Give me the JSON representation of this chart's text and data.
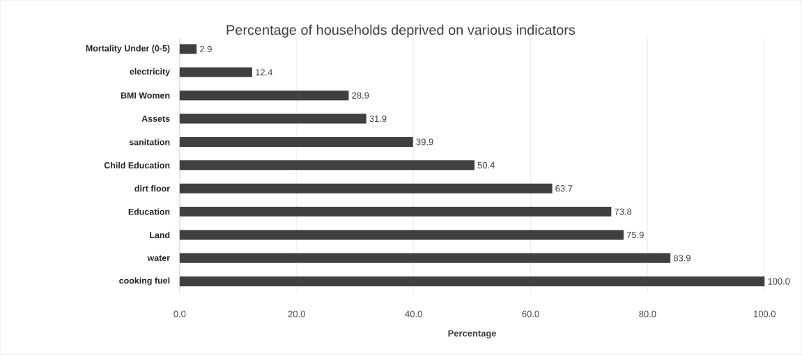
{
  "chart_data": {
    "type": "bar",
    "orientation": "horizontal",
    "title": "Percentage of households deprived on various indicators",
    "xlabel": "Percentage",
    "categories": [
      "Mortality Under (0-5)",
      "electricity",
      "BMI Women",
      "Assets",
      "sanitation",
      "Child Education",
      "dirt floor",
      "Education",
      "Land",
      "water",
      "cooking fuel"
    ],
    "values": [
      2.9,
      12.4,
      28.9,
      31.9,
      39.9,
      50.4,
      63.7,
      73.8,
      75.9,
      83.9,
      100.0
    ],
    "value_labels": [
      "2.9",
      "12.4",
      "28.9",
      "31.9",
      "39.9",
      "50.4",
      "63.7",
      "73.8",
      "75.9",
      "83.9",
      "100.0"
    ],
    "color": "#404040",
    "xlim": [
      0,
      100
    ],
    "xticks": [
      {
        "value": 0,
        "label": "0.0"
      },
      {
        "value": 20,
        "label": "20.0"
      },
      {
        "value": 40,
        "label": "40.0"
      },
      {
        "value": 60,
        "label": "60.0"
      },
      {
        "value": 80,
        "label": "80.0"
      },
      {
        "value": 100,
        "label": "100.0"
      }
    ],
    "grid": "x"
  }
}
